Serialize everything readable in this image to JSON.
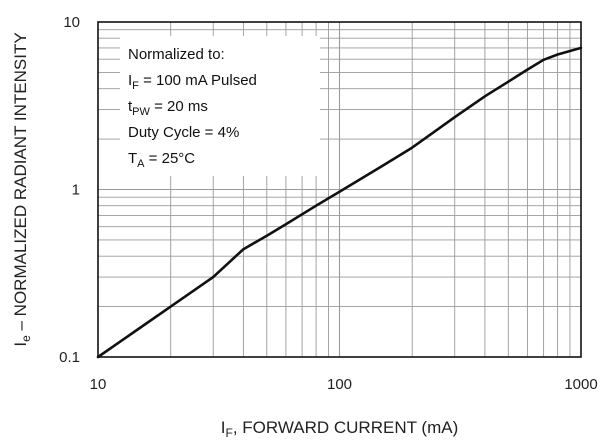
{
  "chart_data": {
    "type": "line",
    "x_scale": "log",
    "y_scale": "log",
    "xlim": [
      10,
      1000
    ],
    "ylim": [
      0.1,
      10
    ],
    "grid": true,
    "x_ticks": [
      {
        "value": 10,
        "label": "10"
      },
      {
        "value": 100,
        "label": "100"
      },
      {
        "value": 1000,
        "label": "1000"
      }
    ],
    "y_ticks": [
      {
        "value": 0.1,
        "label": "0.1"
      },
      {
        "value": 1,
        "label": "1"
      },
      {
        "value": 10,
        "label": "10"
      }
    ],
    "xlabel": {
      "main": "I",
      "sub": "F",
      "rest": ", FORWARD CURRENT (mA)"
    },
    "ylabel": {
      "main": "I",
      "sub": "e",
      "rest": " – NORMALIZED RADIANT INTENSITY"
    },
    "annotation": [
      {
        "main": "Normalized to:",
        "sub": "",
        "rest": ""
      },
      {
        "main": "I",
        "sub": "F",
        "rest": " = 100 mA Pulsed"
      },
      {
        "main": "t",
        "sub": "PW",
        "rest": " = 20 ms"
      },
      {
        "main": "Duty Cycle = 4%",
        "sub": "",
        "rest": ""
      },
      {
        "main": "T",
        "sub": "A",
        "rest": " = 25°C"
      }
    ],
    "series": [
      {
        "x": [
          10,
          15,
          20,
          30,
          40,
          50,
          60,
          80,
          100,
          150,
          200,
          300,
          400,
          500,
          600,
          700,
          800,
          1000
        ],
        "y": [
          0.1,
          0.15,
          0.2,
          0.3,
          0.44,
          0.53,
          0.62,
          0.8,
          0.97,
          1.38,
          1.78,
          2.7,
          3.6,
          4.4,
          5.2,
          5.95,
          6.4,
          7.0
        ]
      }
    ],
    "colors": {
      "line": "#111111",
      "grid": "#9a9a9a",
      "frame": "#111111"
    }
  }
}
